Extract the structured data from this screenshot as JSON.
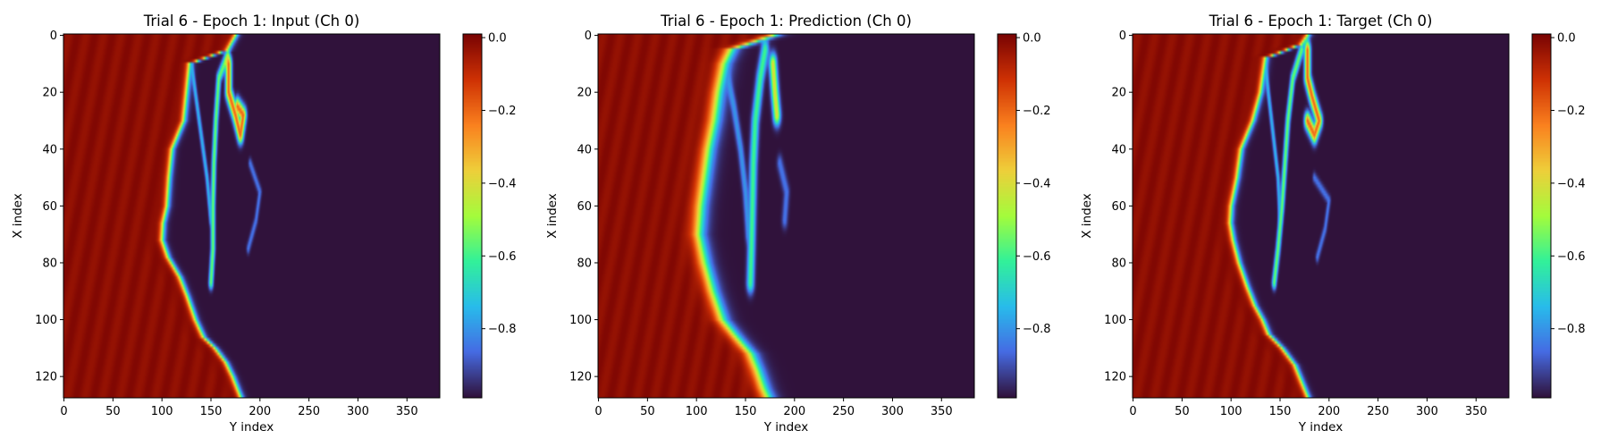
{
  "chart_data": [
    {
      "type": "heatmap",
      "title": "Trial 6 - Epoch 1: Input (Ch 0)",
      "xlabel": "Y index",
      "ylabel": "X index",
      "xlim": [
        0,
        383
      ],
      "ylim": [
        127,
        0
      ],
      "xticks": [
        0,
        50,
        100,
        150,
        200,
        250,
        300,
        350
      ],
      "yticks": [
        0,
        20,
        40,
        60,
        80,
        100,
        120
      ],
      "colorbar": {
        "colormap": "turbo",
        "range": [
          -0.99,
          0.01
        ],
        "ticks": [
          0.0,
          -0.2,
          -0.4,
          -0.6,
          -0.8
        ],
        "tick_labels": [
          "0.0",
          "−0.2",
          "−0.4",
          "−0.6",
          "−0.8"
        ]
      },
      "field": {
        "left_value": 0.0,
        "right_value": -0.99,
        "front_y": [
          [
            0,
            175
          ],
          [
            5,
            167
          ],
          [
            10,
            128
          ],
          [
            20,
            125
          ],
          [
            30,
            122
          ],
          [
            40,
            110
          ],
          [
            50,
            107
          ],
          [
            60,
            105
          ],
          [
            66,
            101
          ],
          [
            72,
            100
          ],
          [
            78,
            106
          ],
          [
            85,
            118
          ],
          [
            92,
            126
          ],
          [
            100,
            134
          ],
          [
            106,
            142
          ],
          [
            110,
            154
          ],
          [
            115,
            165
          ],
          [
            120,
            172
          ],
          [
            127,
            180
          ]
        ],
        "front_width": 3,
        "filaments": [
          {
            "points": [
              [
                7,
                167
              ],
              [
                15,
                158
              ],
              [
                30,
                155
              ],
              [
                45,
                153
              ],
              [
                60,
                152
              ],
              [
                75,
                152
              ],
              [
                87,
                150
              ]
            ],
            "value": -0.55,
            "width": 1.5
          },
          {
            "points": [
              [
                10,
                130
              ],
              [
                20,
                134
              ],
              [
                35,
                140
              ],
              [
                50,
                146
              ],
              [
                65,
                150
              ]
            ],
            "value": -0.75,
            "width": 1.2
          },
          {
            "points": [
              [
                10,
                168
              ],
              [
                20,
                168
              ],
              [
                28,
                175
              ],
              [
                35,
                180
              ],
              [
                28,
                183
              ],
              [
                25,
                177
              ]
            ],
            "value": -0.2,
            "width": 2
          },
          {
            "points": [
              [
                45,
                190
              ],
              [
                55,
                200
              ],
              [
                65,
                196
              ],
              [
                75,
                188
              ]
            ],
            "value": -0.85,
            "width": 1.2
          }
        ]
      }
    },
    {
      "type": "heatmap",
      "title": "Trial 6 - Epoch 1: Prediction (Ch 0)",
      "xlabel": "Y index",
      "ylabel": "X index",
      "xlim": [
        0,
        383
      ],
      "ylim": [
        127,
        0
      ],
      "xticks": [
        0,
        50,
        100,
        150,
        200,
        250,
        300,
        350
      ],
      "yticks": [
        0,
        20,
        40,
        60,
        80,
        100,
        120
      ],
      "colorbar": {
        "colormap": "turbo",
        "range": [
          -0.99,
          0.01
        ],
        "ticks": [
          0.0,
          -0.2,
          -0.4,
          -0.6,
          -0.8
        ],
        "tick_labels": [
          "0.0",
          "−0.2",
          "−0.4",
          "−0.6",
          "−0.8"
        ]
      },
      "field": {
        "left_value": 0.0,
        "right_value": -0.99,
        "front_y": [
          [
            0,
            178
          ],
          [
            5,
            135
          ],
          [
            10,
            128
          ],
          [
            20,
            122
          ],
          [
            30,
            118
          ],
          [
            40,
            112
          ],
          [
            50,
            108
          ],
          [
            60,
            104
          ],
          [
            70,
            102
          ],
          [
            80,
            108
          ],
          [
            90,
            116
          ],
          [
            100,
            126
          ],
          [
            106,
            140
          ],
          [
            112,
            155
          ],
          [
            118,
            162
          ],
          [
            124,
            168
          ],
          [
            127,
            172
          ]
        ],
        "front_width": 7,
        "filaments": [
          {
            "points": [
              [
                5,
                170
              ],
              [
                15,
                165
              ],
              [
                30,
                160
              ],
              [
                45,
                158
              ],
              [
                60,
                157
              ],
              [
                75,
                156
              ],
              [
                87,
                155
              ]
            ],
            "value": -0.6,
            "width": 2.5
          },
          {
            "points": [
              [
                12,
                130
              ],
              [
                25,
                138
              ],
              [
                40,
                145
              ],
              [
                55,
                150
              ],
              [
                70,
                153
              ]
            ],
            "value": -0.8,
            "width": 2
          },
          {
            "points": [
              [
                10,
                178
              ],
              [
                20,
                180
              ],
              [
                28,
                182
              ]
            ],
            "value": -0.4,
            "width": 2.5
          },
          {
            "points": [
              [
                45,
                185
              ],
              [
                55,
                192
              ],
              [
                65,
                190
              ]
            ],
            "value": -0.85,
            "width": 2
          }
        ]
      }
    },
    {
      "type": "heatmap",
      "title": "Trial 6 - Epoch 1: Target (Ch 0)",
      "xlabel": "Y index",
      "ylabel": "X index",
      "xlim": [
        0,
        383
      ],
      "ylim": [
        127,
        0
      ],
      "xticks": [
        0,
        50,
        100,
        150,
        200,
        250,
        300,
        350
      ],
      "yticks": [
        0,
        20,
        40,
        60,
        80,
        100,
        120
      ],
      "colorbar": {
        "colormap": "turbo",
        "range": [
          -0.99,
          0.01
        ],
        "ticks": [
          0.0,
          -0.2,
          -0.4,
          -0.6,
          -0.8
        ],
        "tick_labels": [
          "0.0",
          "−0.2",
          "−0.4",
          "−0.6",
          "−0.8"
        ]
      },
      "field": {
        "left_value": 0.0,
        "right_value": -0.99,
        "front_y": [
          [
            0,
            178
          ],
          [
            3,
            172
          ],
          [
            8,
            135
          ],
          [
            20,
            130
          ],
          [
            30,
            122
          ],
          [
            40,
            110
          ],
          [
            50,
            106
          ],
          [
            60,
            100
          ],
          [
            66,
            99
          ],
          [
            72,
            102
          ],
          [
            80,
            108
          ],
          [
            88,
            116
          ],
          [
            95,
            124
          ],
          [
            100,
            132
          ],
          [
            105,
            138
          ],
          [
            110,
            152
          ],
          [
            116,
            165
          ],
          [
            122,
            172
          ],
          [
            127,
            178
          ]
        ],
        "front_width": 3,
        "filaments": [
          {
            "points": [
              [
                5,
                172
              ],
              [
                15,
                163
              ],
              [
                30,
                158
              ],
              [
                45,
                155
              ],
              [
                60,
                152
              ],
              [
                75,
                148
              ],
              [
                87,
                144
              ]
            ],
            "value": -0.55,
            "width": 1.5
          },
          {
            "points": [
              [
                10,
                135
              ],
              [
                20,
                138
              ],
              [
                35,
                143
              ],
              [
                50,
                148
              ],
              [
                65,
                150
              ]
            ],
            "value": -0.75,
            "width": 1.2
          },
          {
            "points": [
              [
                5,
                178
              ],
              [
                15,
                178
              ],
              [
                22,
                183
              ],
              [
                30,
                190
              ],
              [
                35,
                185
              ],
              [
                30,
                178
              ]
            ],
            "value": -0.2,
            "width": 2
          },
          {
            "points": [
              [
                50,
                185
              ],
              [
                58,
                200
              ],
              [
                68,
                196
              ],
              [
                78,
                188
              ]
            ],
            "value": -0.85,
            "width": 1.2
          }
        ]
      }
    }
  ]
}
